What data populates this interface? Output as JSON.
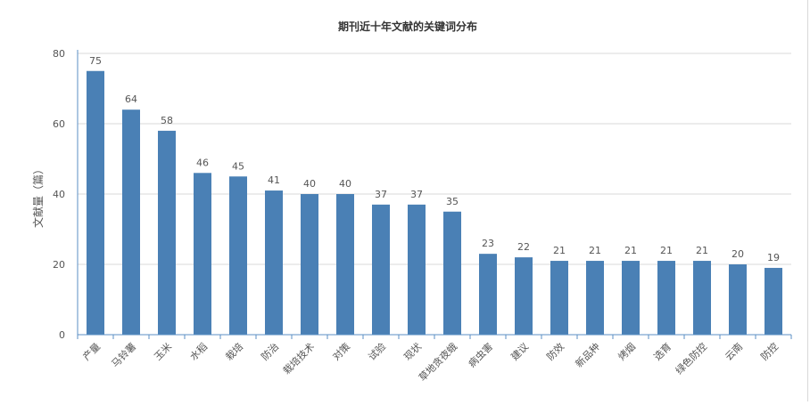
{
  "colors": {
    "bar": "#4a80b5",
    "grid": "#d9d9d9",
    "axis": "#5b8fc4",
    "text": "#555555",
    "title": "#333333"
  },
  "chart_data": {
    "type": "bar",
    "title": "期刊近十年文献的关键词分布",
    "xlabel": "",
    "ylabel": "文献量（篇）",
    "ylim": [
      0,
      80
    ],
    "yticks": [
      0,
      20,
      40,
      60,
      80
    ],
    "grid": true,
    "categories": [
      "产量",
      "马铃薯",
      "玉米",
      "水稻",
      "栽培",
      "防治",
      "栽培技术",
      "对策",
      "试验",
      "现状",
      "草地贪夜蛾",
      "病虫害",
      "建议",
      "防效",
      "新品种",
      "烤烟",
      "选育",
      "绿色防控",
      "云南",
      "防控"
    ],
    "values": [
      75,
      64,
      58,
      46,
      45,
      41,
      40,
      40,
      37,
      37,
      35,
      23,
      22,
      21,
      21,
      21,
      21,
      21,
      20,
      19
    ]
  }
}
